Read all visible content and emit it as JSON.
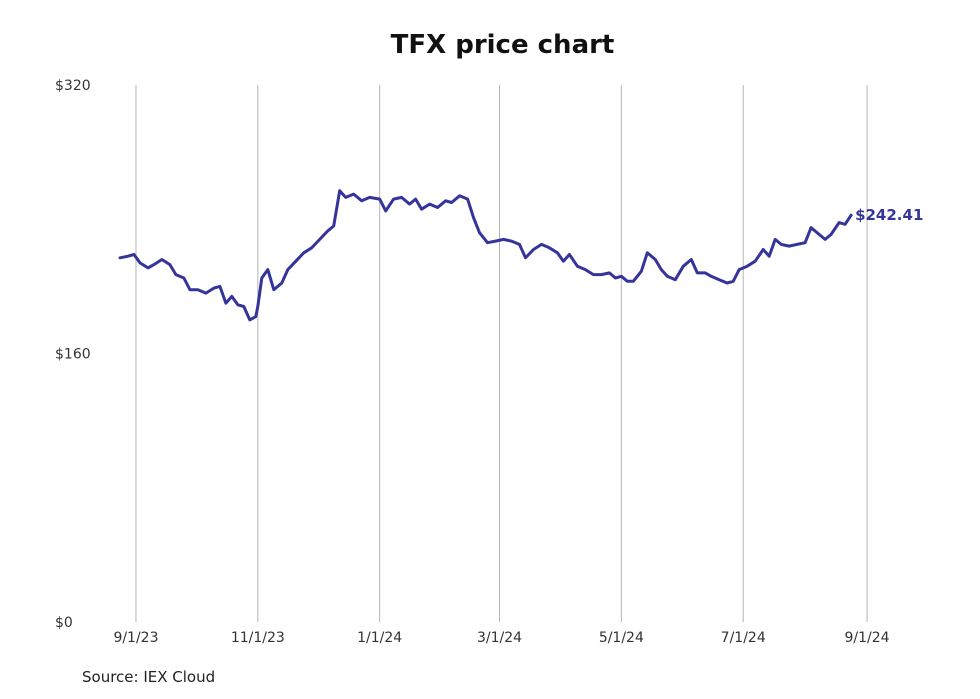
{
  "chart_data": {
    "type": "line",
    "title": "TFX price chart",
    "source": "Source: IEX Cloud",
    "ylim": [
      0,
      320
    ],
    "y_ticks": [
      {
        "value": 0,
        "label": "$0"
      },
      {
        "value": 160,
        "label": "$160"
      },
      {
        "value": 320,
        "label": "$320"
      }
    ],
    "x_ticks": [
      {
        "date": "2023-09-01",
        "label": "9/1/23"
      },
      {
        "date": "2023-11-01",
        "label": "11/1/23"
      },
      {
        "date": "2024-01-01",
        "label": "1/1/24"
      },
      {
        "date": "2024-03-01",
        "label": "3/1/24"
      },
      {
        "date": "2024-05-01",
        "label": "5/1/24"
      },
      {
        "date": "2024-07-01",
        "label": "7/1/24"
      },
      {
        "date": "2024-09-01",
        "label": "9/1/24"
      }
    ],
    "xlim": [
      "2023-08-20",
      "2024-09-20"
    ],
    "grid": "vertical",
    "line_color": "#35349a",
    "last_label": "$242.41",
    "series": [
      {
        "points": [
          [
            "2023-08-24",
            217
          ],
          [
            "2023-08-28",
            218
          ],
          [
            "2023-08-31",
            219
          ],
          [
            "2023-09-03",
            214
          ],
          [
            "2023-09-07",
            211
          ],
          [
            "2023-09-10",
            213
          ],
          [
            "2023-09-14",
            216
          ],
          [
            "2023-09-18",
            213
          ],
          [
            "2023-09-21",
            207
          ],
          [
            "2023-09-25",
            205
          ],
          [
            "2023-09-28",
            198
          ],
          [
            "2023-10-02",
            198
          ],
          [
            "2023-10-06",
            196
          ],
          [
            "2023-10-10",
            199
          ],
          [
            "2023-10-13",
            200
          ],
          [
            "2023-10-16",
            190
          ],
          [
            "2023-10-19",
            194
          ],
          [
            "2023-10-22",
            189
          ],
          [
            "2023-10-25",
            188
          ],
          [
            "2023-10-28",
            180
          ],
          [
            "2023-10-31",
            182
          ],
          [
            "2023-11-01",
            188
          ],
          [
            "2023-11-03",
            205
          ],
          [
            "2023-11-06",
            210
          ],
          [
            "2023-11-09",
            198
          ],
          [
            "2023-11-13",
            202
          ],
          [
            "2023-11-16",
            210
          ],
          [
            "2023-11-20",
            215
          ],
          [
            "2023-11-24",
            220
          ],
          [
            "2023-11-28",
            223
          ],
          [
            "2023-12-02",
            228
          ],
          [
            "2023-12-06",
            233
          ],
          [
            "2023-12-09",
            236
          ],
          [
            "2023-12-12",
            257
          ],
          [
            "2023-12-15",
            253
          ],
          [
            "2023-12-19",
            255
          ],
          [
            "2023-12-23",
            251
          ],
          [
            "2023-12-27",
            253
          ],
          [
            "2024-01-01",
            252
          ],
          [
            "2024-01-04",
            245
          ],
          [
            "2024-01-08",
            252
          ],
          [
            "2024-01-12",
            253
          ],
          [
            "2024-01-16",
            249
          ],
          [
            "2024-01-19",
            252
          ],
          [
            "2024-01-22",
            246
          ],
          [
            "2024-01-26",
            249
          ],
          [
            "2024-01-30",
            247
          ],
          [
            "2024-02-03",
            251
          ],
          [
            "2024-02-06",
            250
          ],
          [
            "2024-02-10",
            254
          ],
          [
            "2024-02-14",
            252
          ],
          [
            "2024-02-17",
            241
          ],
          [
            "2024-02-20",
            232
          ],
          [
            "2024-02-24",
            226
          ],
          [
            "2024-02-28",
            227
          ],
          [
            "2024-03-03",
            228
          ],
          [
            "2024-03-07",
            227
          ],
          [
            "2024-03-11",
            225
          ],
          [
            "2024-03-14",
            217
          ],
          [
            "2024-03-18",
            222
          ],
          [
            "2024-03-22",
            225
          ],
          [
            "2024-03-26",
            223
          ],
          [
            "2024-03-30",
            220
          ],
          [
            "2024-04-02",
            215
          ],
          [
            "2024-04-05",
            219
          ],
          [
            "2024-04-09",
            212
          ],
          [
            "2024-04-13",
            210
          ],
          [
            "2024-04-17",
            207
          ],
          [
            "2024-04-21",
            207
          ],
          [
            "2024-04-25",
            208
          ],
          [
            "2024-04-28",
            205
          ],
          [
            "2024-05-01",
            206
          ],
          [
            "2024-05-04",
            203
          ],
          [
            "2024-05-07",
            203
          ],
          [
            "2024-05-11",
            209
          ],
          [
            "2024-05-14",
            220
          ],
          [
            "2024-05-18",
            216
          ],
          [
            "2024-05-21",
            210
          ],
          [
            "2024-05-24",
            206
          ],
          [
            "2024-05-28",
            204
          ],
          [
            "2024-06-01",
            212
          ],
          [
            "2024-06-05",
            216
          ],
          [
            "2024-06-08",
            208
          ],
          [
            "2024-06-12",
            208
          ],
          [
            "2024-06-15",
            206
          ],
          [
            "2024-06-19",
            204
          ],
          [
            "2024-06-23",
            202
          ],
          [
            "2024-06-26",
            203
          ],
          [
            "2024-06-29",
            210
          ],
          [
            "2024-07-03",
            212
          ],
          [
            "2024-07-07",
            215
          ],
          [
            "2024-07-11",
            222
          ],
          [
            "2024-07-14",
            218
          ],
          [
            "2024-07-17",
            228
          ],
          [
            "2024-07-20",
            225
          ],
          [
            "2024-07-24",
            224
          ],
          [
            "2024-07-28",
            225
          ],
          [
            "2024-08-01",
            226
          ],
          [
            "2024-08-04",
            235
          ],
          [
            "2024-08-08",
            231
          ],
          [
            "2024-08-11",
            228
          ],
          [
            "2024-08-14",
            231
          ],
          [
            "2024-08-18",
            238
          ],
          [
            "2024-08-21",
            237
          ],
          [
            "2024-08-24",
            242.41
          ]
        ]
      }
    ]
  }
}
